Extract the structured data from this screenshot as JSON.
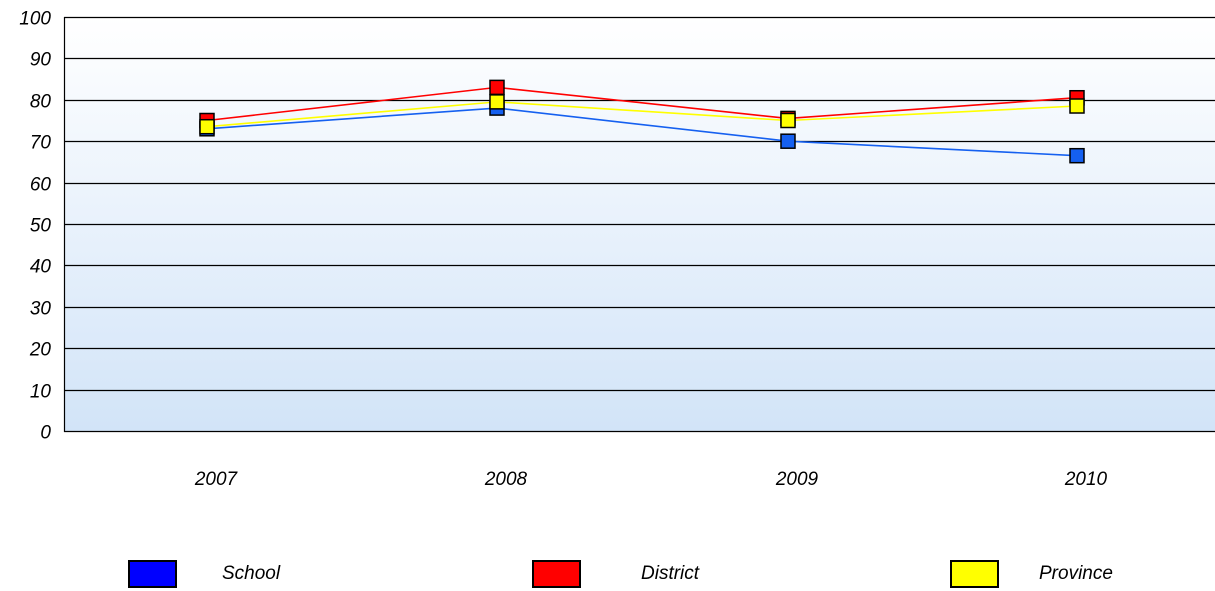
{
  "chart_data": {
    "type": "line",
    "categories": [
      "2007",
      "2008",
      "2009",
      "2010"
    ],
    "series": [
      {
        "name": "School",
        "values": [
          73,
          78,
          70,
          66.5
        ],
        "color": "#1560f0",
        "marker_color": "#1560f0",
        "legend_color": "#0000ff"
      },
      {
        "name": "District",
        "values": [
          75,
          83,
          75.5,
          80.5
        ],
        "color": "#ff0000",
        "marker_color": "#ff0000",
        "legend_color": "#ff0000"
      },
      {
        "name": "Province",
        "values": [
          73.5,
          79.5,
          75,
          78.5
        ],
        "color": "#ffff00",
        "marker_color": "#ffff00",
        "legend_color": "#ffff00"
      }
    ],
    "yticks": [
      "0",
      "10",
      "20",
      "30",
      "40",
      "50",
      "60",
      "70",
      "80",
      "90",
      "100"
    ],
    "ylim": [
      0,
      100
    ],
    "grid": true,
    "legend_position": "bottom",
    "background_gradient": [
      "#ffffff",
      "#d2e4f8"
    ]
  }
}
